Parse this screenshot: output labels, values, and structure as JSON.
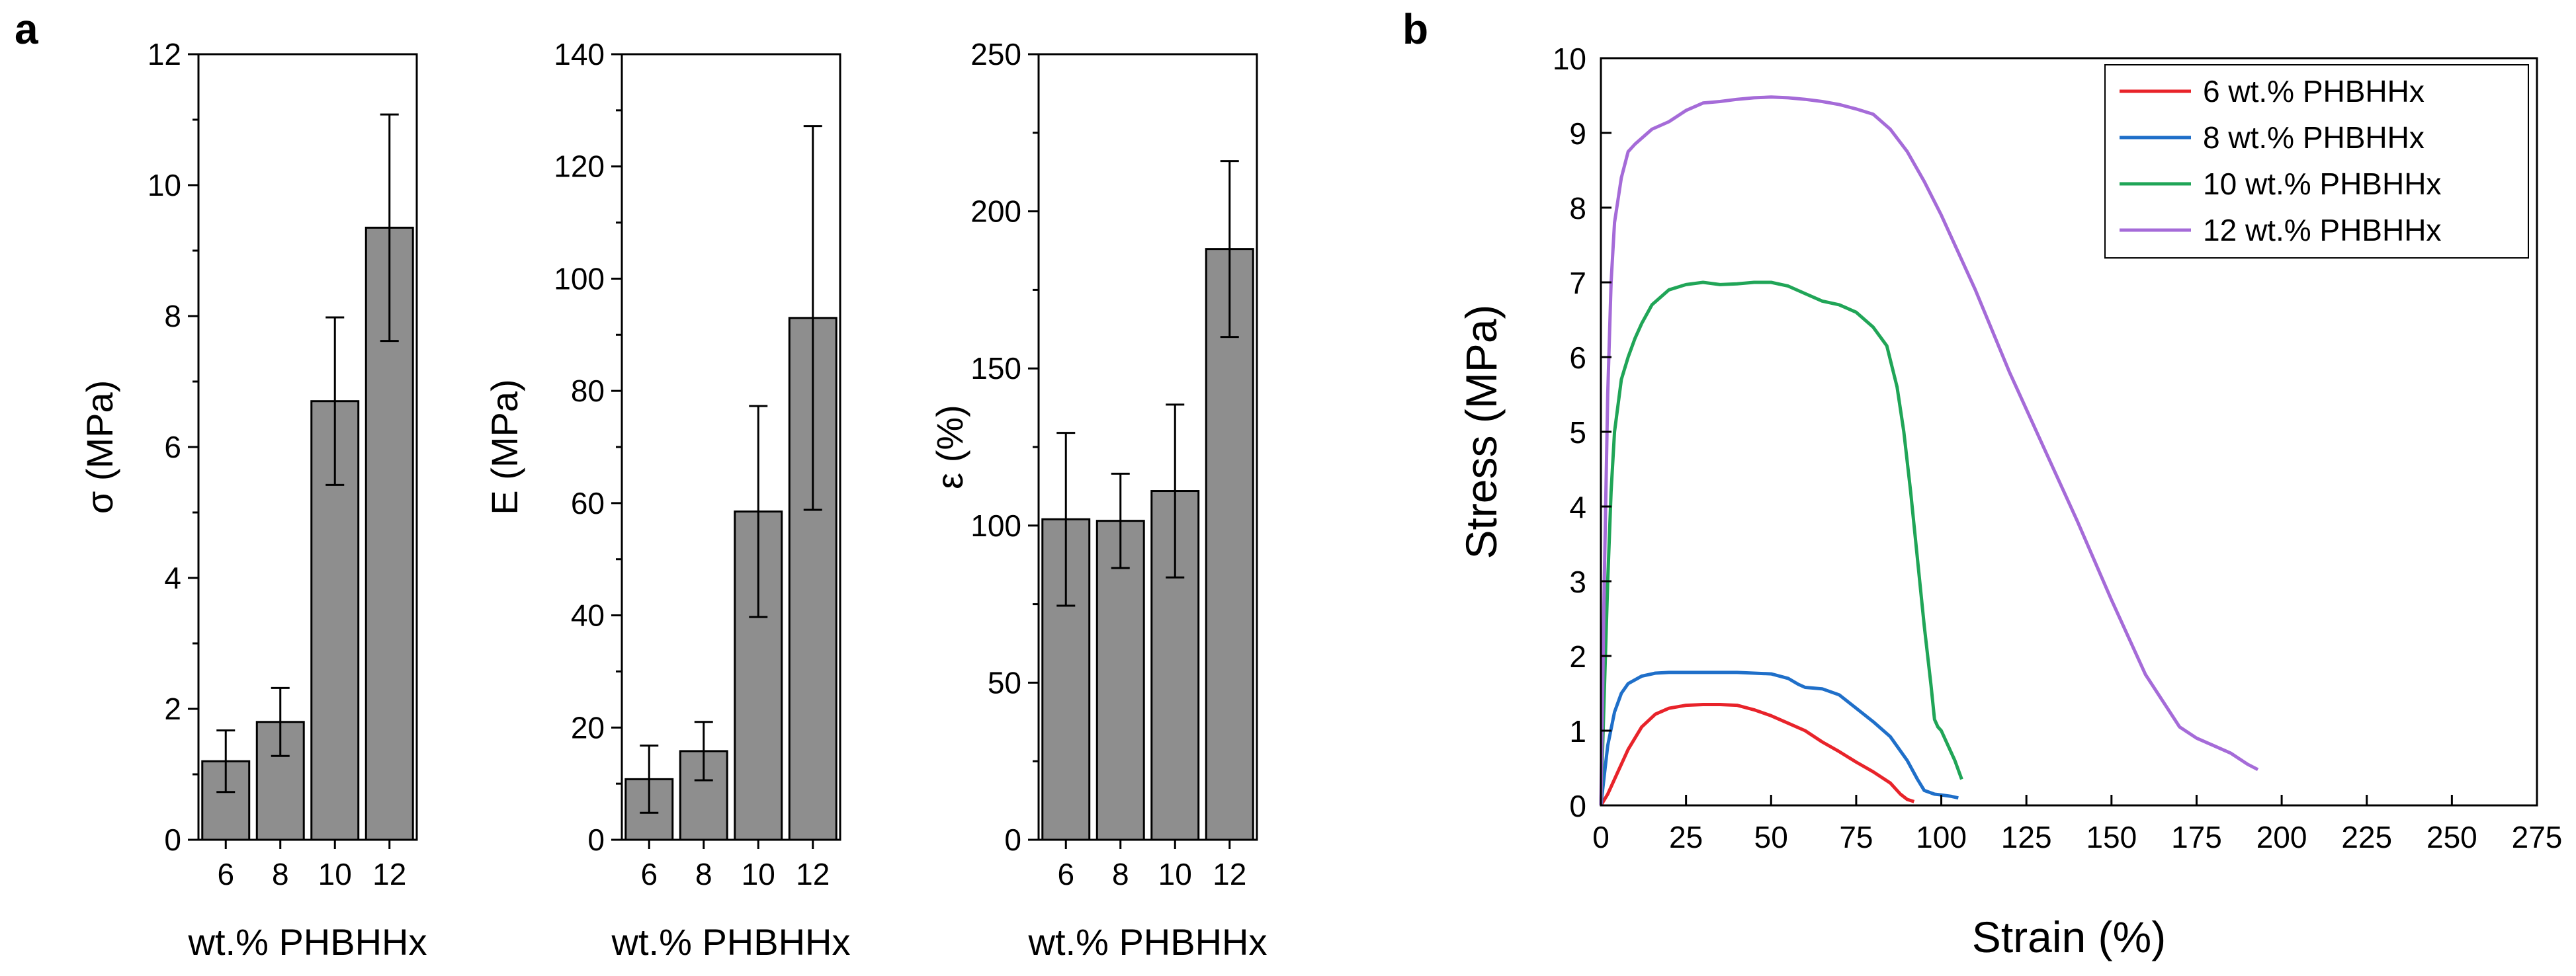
{
  "panel_labels": {
    "a": "a",
    "b": "b"
  },
  "colors": {
    "bar_fill": "#8e8e8e",
    "axis": "#000000",
    "series_6": "#e8232a",
    "series_8": "#1f6fc9",
    "series_10": "#20a557",
    "series_12": "#a56bd8"
  },
  "chart_data": [
    {
      "type": "bar",
      "panel": "a",
      "categories": [
        "6",
        "8",
        "10",
        "12"
      ],
      "values": [
        1.2,
        1.8,
        6.7,
        9.35
      ],
      "errors": [
        0.47,
        0.52,
        1.28,
        1.73
      ],
      "ylim": [
        0,
        12
      ],
      "yticks": [
        0,
        2,
        4,
        6,
        8,
        10,
        12
      ],
      "yminor_step": 1,
      "xlabel": "wt.% PHBHHx",
      "ylabel": "σ (MPa)",
      "grid": false
    },
    {
      "type": "bar",
      "panel": "a",
      "categories": [
        "6",
        "8",
        "10",
        "12"
      ],
      "values": [
        10.8,
        15.8,
        58.5,
        93
      ],
      "errors": [
        6,
        5.2,
        18.8,
        34.2
      ],
      "ylim": [
        0,
        140
      ],
      "yticks": [
        0,
        20,
        40,
        60,
        80,
        100,
        120,
        140
      ],
      "yminor_step": 10,
      "xlabel": "wt.% PHBHHx",
      "ylabel": "E (MPa)",
      "grid": false
    },
    {
      "type": "bar",
      "panel": "a",
      "categories": [
        "6",
        "8",
        "10",
        "12"
      ],
      "values": [
        102,
        101.5,
        111,
        188
      ],
      "errors": [
        27.5,
        15,
        27.5,
        28
      ],
      "ylim": [
        0,
        250
      ],
      "yticks": [
        0,
        50,
        100,
        150,
        200,
        250
      ],
      "yminor_step": 25,
      "xlabel": "wt.% PHBHHx",
      "ylabel": "ε (%)",
      "grid": false
    },
    {
      "type": "line",
      "panel": "b",
      "title": "",
      "xlabel": "Strain (%)",
      "ylabel": "Stress (MPa)",
      "xlim": [
        0,
        275
      ],
      "ylim": [
        0,
        10
      ],
      "xticks": [
        0,
        25,
        50,
        75,
        100,
        125,
        150,
        175,
        200,
        225,
        250,
        275
      ],
      "yticks": [
        0,
        1,
        2,
        3,
        4,
        5,
        6,
        7,
        8,
        9,
        10
      ],
      "legend_position": "top-right",
      "grid": false,
      "series": [
        {
          "name": "6 wt.% PHBHHx",
          "color": "#e8232a",
          "x": [
            0,
            2,
            5,
            8,
            12,
            16,
            20,
            25,
            30,
            35,
            40,
            45,
            50,
            55,
            60,
            65,
            70,
            75,
            80,
            85,
            88,
            90,
            92
          ],
          "y": [
            0,
            0.15,
            0.45,
            0.75,
            1.05,
            1.22,
            1.3,
            1.34,
            1.35,
            1.35,
            1.34,
            1.28,
            1.2,
            1.1,
            1.0,
            0.85,
            0.72,
            0.58,
            0.45,
            0.3,
            0.15,
            0.08,
            0.05
          ]
        },
        {
          "name": "8 wt.% PHBHHx",
          "color": "#1f6fc9",
          "x": [
            0,
            1,
            2,
            4,
            6,
            8,
            12,
            16,
            20,
            25,
            30,
            40,
            50,
            55,
            58,
            60,
            65,
            70,
            75,
            80,
            85,
            90,
            93,
            95,
            98,
            100,
            103,
            105
          ],
          "y": [
            0,
            0.4,
            0.8,
            1.25,
            1.5,
            1.63,
            1.73,
            1.77,
            1.78,
            1.78,
            1.78,
            1.78,
            1.76,
            1.7,
            1.62,
            1.58,
            1.56,
            1.48,
            1.3,
            1.12,
            0.92,
            0.6,
            0.35,
            0.2,
            0.15,
            0.14,
            0.12,
            0.1
          ]
        },
        {
          "name": "10 wt.% PHBHHx",
          "color": "#20a557",
          "x": [
            0,
            1,
            2,
            3,
            4,
            6,
            8,
            10,
            12,
            15,
            20,
            25,
            30,
            35,
            40,
            45,
            50,
            55,
            60,
            65,
            70,
            75,
            80,
            84,
            87,
            89,
            91,
            93,
            95,
            97,
            98,
            99,
            100,
            102,
            104,
            106
          ],
          "y": [
            0,
            1.5,
            3.0,
            4.2,
            5.0,
            5.7,
            6.0,
            6.25,
            6.45,
            6.7,
            6.9,
            6.97,
            7.0,
            6.97,
            6.98,
            7.0,
            7.0,
            6.95,
            6.85,
            6.75,
            6.7,
            6.6,
            6.4,
            6.15,
            5.6,
            5.0,
            4.2,
            3.3,
            2.4,
            1.6,
            1.15,
            1.05,
            1.0,
            0.8,
            0.6,
            0.35
          ]
        },
        {
          "name": "12 wt.% PHBHHx",
          "color": "#a56bd8",
          "x": [
            0,
            1,
            2,
            3,
            4,
            6,
            8,
            10,
            15,
            20,
            25,
            30,
            35,
            40,
            45,
            50,
            55,
            60,
            65,
            70,
            75,
            80,
            85,
            90,
            95,
            100,
            110,
            120,
            130,
            140,
            150,
            160,
            170,
            175,
            180,
            185,
            190,
            193
          ],
          "y": [
            0,
            3.0,
            5.5,
            7.0,
            7.8,
            8.4,
            8.75,
            8.85,
            9.05,
            9.15,
            9.3,
            9.4,
            9.42,
            9.45,
            9.47,
            9.48,
            9.47,
            9.45,
            9.42,
            9.38,
            9.32,
            9.25,
            9.05,
            8.75,
            8.35,
            7.9,
            6.9,
            5.8,
            4.8,
            3.8,
            2.75,
            1.75,
            1.05,
            0.9,
            0.8,
            0.7,
            0.55,
            0.48
          ]
        }
      ]
    }
  ]
}
